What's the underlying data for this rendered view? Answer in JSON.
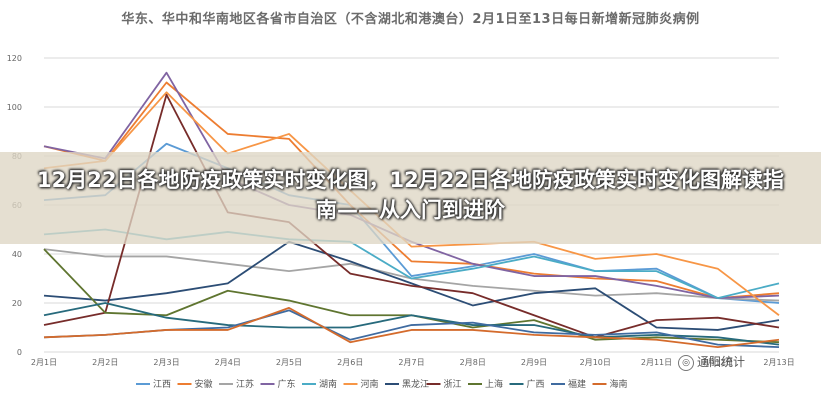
{
  "chart_data": {
    "type": "line",
    "title": "华东、华中和华南地区各省市自治区（不含湖北和港澳台）2月1日至13日每日新增新冠肺炎病例",
    "categories": [
      "2月1日",
      "2月2日",
      "2月3日",
      "2月4日",
      "2月5日",
      "2月6日",
      "2月7日",
      "2月8日",
      "2月9日",
      "2月10日",
      "2月11日",
      "2月12日",
      "2月13日"
    ],
    "ylim": [
      0,
      120
    ],
    "yticks": [
      0,
      20,
      40,
      60,
      80,
      100,
      120
    ],
    "grid": true,
    "legend_position": "bottom",
    "series": [
      {
        "name": "江西",
        "color": "#5b9bd5",
        "values": [
          62,
          64,
          85,
          75,
          64,
          60,
          31,
          35,
          40,
          33,
          34,
          22,
          20
        ]
      },
      {
        "name": "安徽",
        "color": "#ed7d31",
        "values": [
          84,
          78,
          110,
          89,
          87,
          60,
          37,
          36,
          32,
          30,
          29,
          22,
          24
        ]
      },
      {
        "name": "江苏",
        "color": "#a5a5a5",
        "values": [
          42,
          39,
          39,
          36,
          33,
          36,
          30,
          27,
          25,
          23,
          24,
          22,
          21
        ]
      },
      {
        "name": "广东",
        "color": "#8064a2",
        "values": [
          84,
          79,
          114,
          71,
          60,
          56,
          45,
          36,
          31,
          31,
          27,
          22,
          23
        ]
      },
      {
        "name": "湖南",
        "color": "#4bacc6",
        "values": [
          48,
          50,
          46,
          49,
          46,
          45,
          30,
          34,
          39,
          33,
          33,
          22,
          28
        ]
      },
      {
        "name": "河南",
        "color": "#f79646",
        "values": [
          75,
          78,
          106,
          81,
          89,
          66,
          43,
          44,
          45,
          38,
          40,
          34,
          15
        ]
      },
      {
        "name": "黑龙江",
        "color": "#2c4d75",
        "values": [
          23,
          21,
          24,
          28,
          45,
          37,
          28,
          19,
          24,
          26,
          10,
          9,
          13
        ]
      },
      {
        "name": "浙江",
        "color": "#772c2a",
        "values": [
          11,
          16,
          105,
          57,
          53,
          32,
          27,
          24,
          15,
          6,
          13,
          14,
          10
        ]
      },
      {
        "name": "上海",
        "color": "#5f7530",
        "values": [
          42,
          16,
          15,
          25,
          21,
          15,
          15,
          10,
          13,
          5,
          6,
          5,
          4
        ]
      },
      {
        "name": "广西",
        "color": "#276a7c",
        "values": [
          15,
          20,
          14,
          11,
          10,
          10,
          15,
          11,
          11,
          6,
          7,
          6,
          3
        ]
      },
      {
        "name": "福建",
        "color": "#3f6ba0",
        "values": [
          6,
          7,
          9,
          10,
          17,
          5,
          11,
          12,
          8,
          7,
          8,
          3,
          2
        ]
      },
      {
        "name": "海南",
        "color": "#d46b2c",
        "values": [
          6,
          7,
          9,
          9,
          18,
          4,
          9,
          9,
          7,
          6,
          5,
          2,
          5
        ]
      }
    ]
  },
  "overlay": {
    "headline": "12月22日各地防疫政策实时变化图，12月22日各地防疫政策实时变化图解读指南——从入门到进阶"
  },
  "watermark": {
    "text": "通阳统计"
  }
}
